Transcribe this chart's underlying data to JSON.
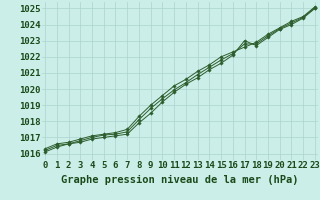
{
  "title": "Graphe pression niveau de la mer (hPa)",
  "background_color": "#cceee8",
  "grid_color": "#aad4ce",
  "line_color": "#2d5e2d",
  "marker_color": "#2d5e2d",
  "xlim": [
    -0.3,
    23.3
  ],
  "ylim": [
    1015.6,
    1025.4
  ],
  "xticks": [
    0,
    1,
    2,
    3,
    4,
    5,
    6,
    7,
    8,
    9,
    10,
    11,
    12,
    13,
    14,
    15,
    16,
    17,
    18,
    19,
    20,
    21,
    22,
    23
  ],
  "yticks": [
    1016,
    1017,
    1018,
    1019,
    1020,
    1021,
    1022,
    1023,
    1024,
    1025
  ],
  "series1": [
    1016.1,
    1016.4,
    1016.6,
    1016.7,
    1016.9,
    1017.0,
    1017.1,
    1017.2,
    1017.9,
    1018.5,
    1019.2,
    1019.8,
    1020.3,
    1020.7,
    1021.2,
    1021.6,
    1022.1,
    1023.0,
    1022.7,
    1023.2,
    1023.7,
    1024.0,
    1024.4,
    1025.0
  ],
  "series2": [
    1016.3,
    1016.6,
    1016.7,
    1016.9,
    1017.1,
    1017.2,
    1017.3,
    1017.5,
    1018.3,
    1019.0,
    1019.6,
    1020.2,
    1020.6,
    1021.1,
    1021.5,
    1022.0,
    1022.3,
    1022.6,
    1022.9,
    1023.4,
    1023.8,
    1024.2,
    1024.5,
    1025.1
  ],
  "series3": [
    1016.2,
    1016.5,
    1016.6,
    1016.8,
    1017.0,
    1017.15,
    1017.2,
    1017.35,
    1018.1,
    1018.8,
    1019.4,
    1019.95,
    1020.4,
    1020.9,
    1021.35,
    1021.8,
    1022.2,
    1022.8,
    1022.8,
    1023.3,
    1023.75,
    1024.1,
    1024.45,
    1025.05
  ],
  "tick_fontsize": 6.5,
  "title_fontsize": 7.5
}
